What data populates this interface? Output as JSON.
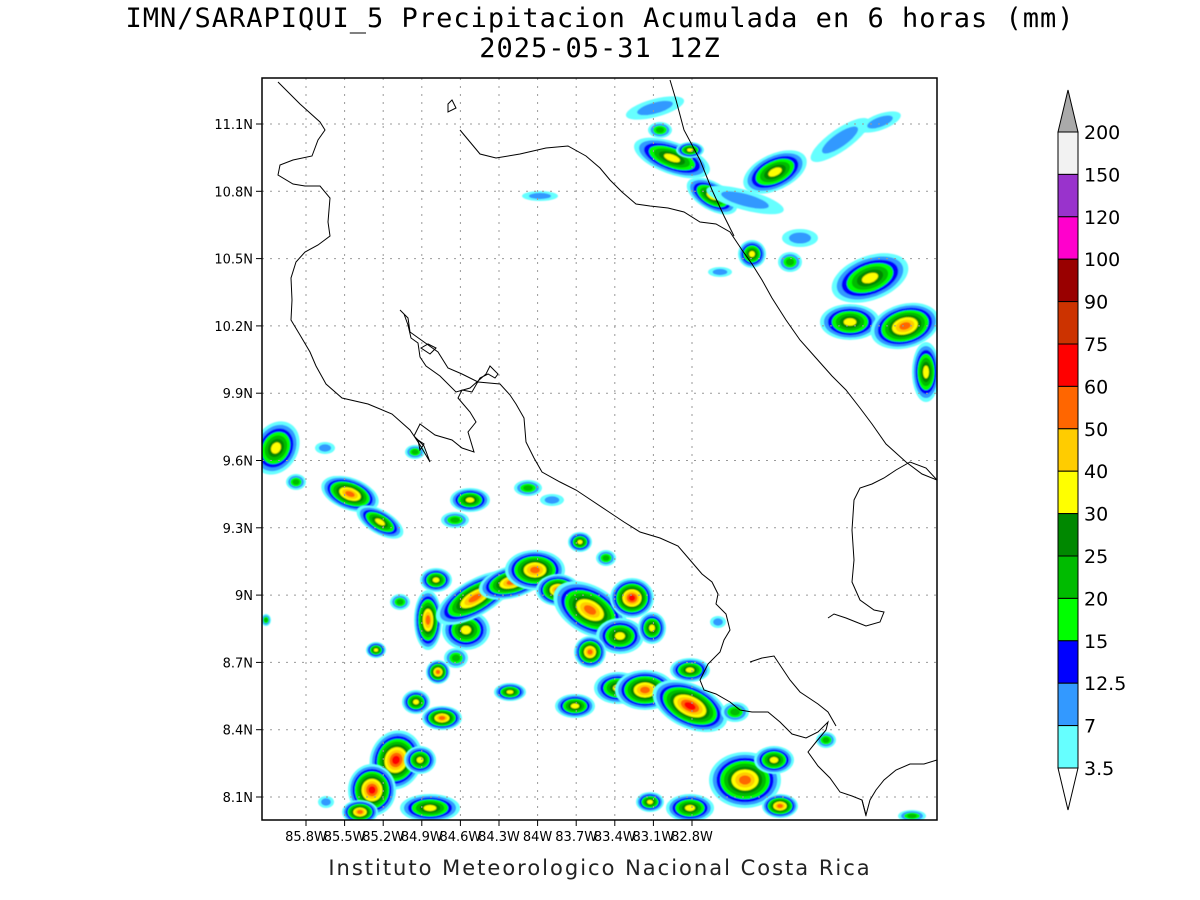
{
  "title": {
    "line1": "IMN/SARAPIQUI_5 Precipitacion Acumulada en 6 horas (mm)",
    "line2": "2025-05-31 12Z"
  },
  "footer": "Instituto Meteorologico Nacional Costa Rica",
  "map": {
    "lat_range": [
      8.0,
      11.3
    ],
    "lon_range": [
      -86.0,
      -83.0
    ],
    "lat_ticks": [
      "11.1N",
      "10.8N",
      "10.5N",
      "10.2N",
      "9.9N",
      "9.6N",
      "9.3N",
      "9N",
      "8.7N",
      "8.4N",
      "8.1N"
    ],
    "lon_ticks": [
      "85.8W",
      "85.5W",
      "85.2W",
      "84.9W",
      "84.6W",
      "84.3W",
      "84W",
      "83.7W",
      "83.4W",
      "83.1W",
      "82.8W"
    ],
    "grid": true
  },
  "colorbar": {
    "labels": [
      "200",
      "150",
      "120",
      "100",
      "90",
      "75",
      "60",
      "50",
      "40",
      "30",
      "25",
      "20",
      "15",
      "12.5",
      "7",
      "3.5"
    ],
    "colors": [
      "#f2f2f2",
      "#9933cc",
      "#ff00cc",
      "#990000",
      "#cc3300",
      "#ff0000",
      "#ff6600",
      "#ffcc00",
      "#ffff00",
      "#008800",
      "#00bb00",
      "#00ff00",
      "#0000ff",
      "#3399ff",
      "#66ffff"
    ],
    "top_triangle_color": "#aaaaaa",
    "bottom_triangle_color": "#ffffff"
  }
}
